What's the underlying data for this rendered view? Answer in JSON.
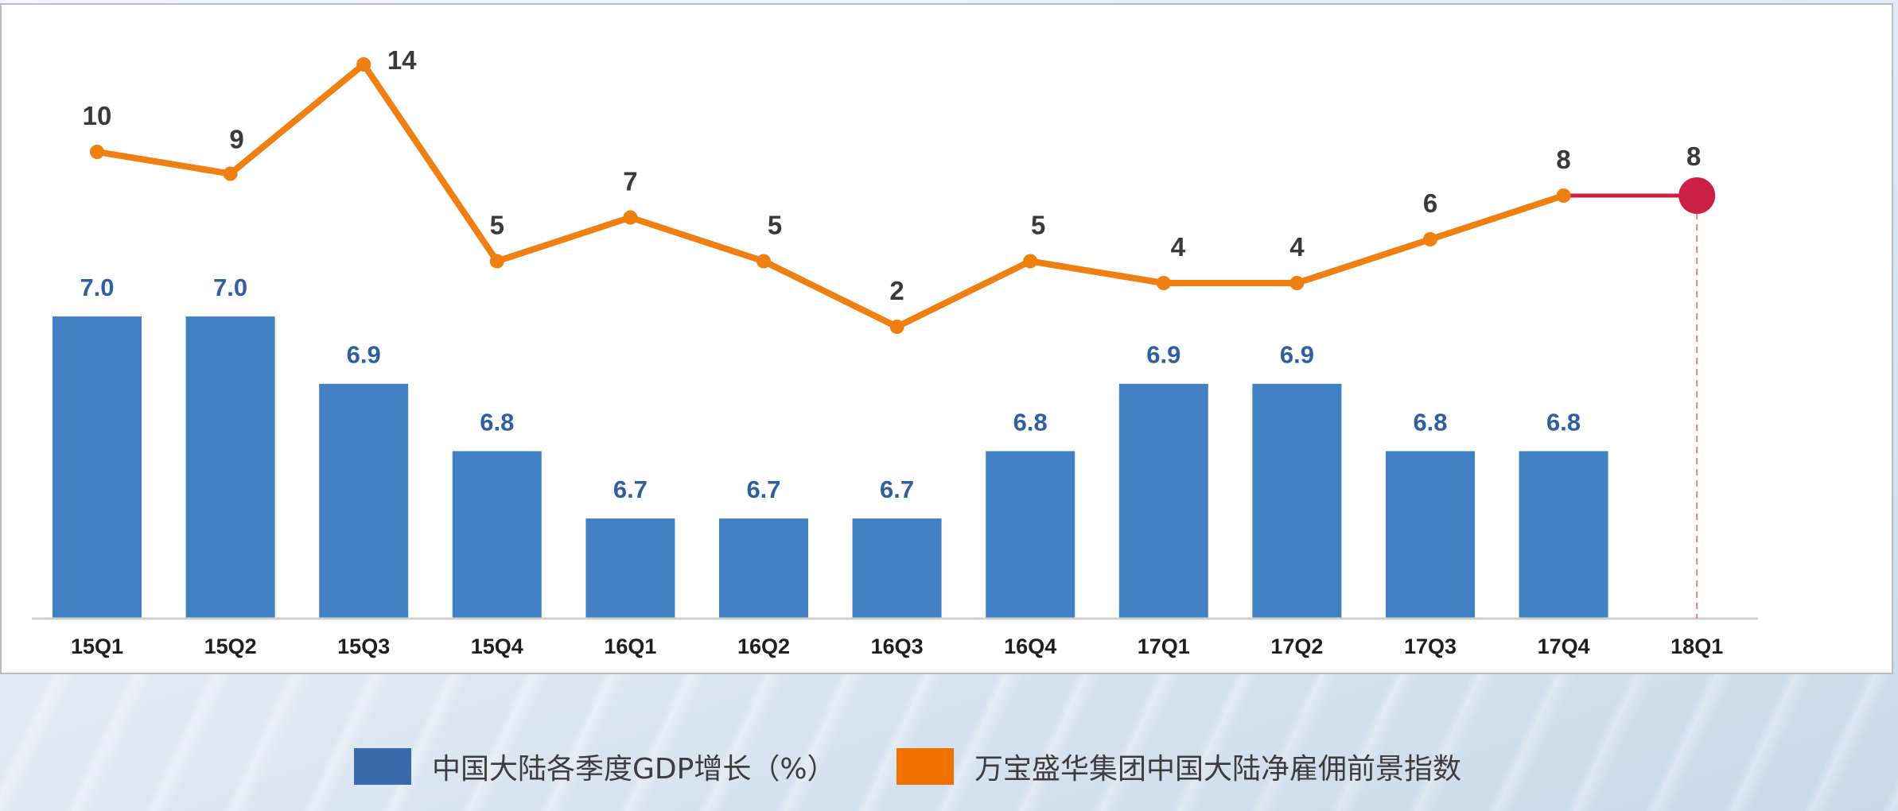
{
  "chart_data": {
    "type": "bar+line",
    "categories": [
      "15Q1",
      "15Q2",
      "15Q3",
      "15Q4",
      "16Q1",
      "16Q2",
      "16Q3",
      "16Q4",
      "17Q1",
      "17Q2",
      "17Q3",
      "17Q4",
      "18Q1"
    ],
    "series": [
      {
        "name": "中国大陆各季度GDP增长（%）",
        "type": "bar",
        "color": "#4180c2",
        "label_color": "#2f5f9e",
        "values": [
          7.0,
          7.0,
          6.9,
          6.8,
          6.7,
          6.7,
          6.7,
          6.8,
          6.9,
          6.9,
          6.8,
          6.8,
          null
        ],
        "labels": [
          "7.0",
          "7.0",
          "6.9",
          "6.8",
          "6.7",
          "6.7",
          "6.7",
          "6.8",
          "6.9",
          "6.9",
          "6.8",
          "6.8",
          ""
        ]
      },
      {
        "name": "万宝盛华集团中国大陆净雇佣前景指数",
        "type": "line",
        "color": "#f07f12",
        "highlight_color": "#cc1f44",
        "values": [
          10,
          9,
          14,
          5,
          7,
          5,
          2,
          5,
          4,
          4,
          6,
          8,
          8
        ],
        "labels": [
          "10",
          "9",
          "14",
          "5",
          "7",
          "5",
          "2",
          "5",
          "4",
          "4",
          "6",
          "8",
          "8"
        ]
      }
    ],
    "highlight_category": "18Q1",
    "grid": false,
    "legend_position": "bottom"
  },
  "legend": {
    "items": [
      {
        "label": "中国大陆各季度GDP增长（%）",
        "color": "#3a6aad"
      },
      {
        "label": "万宝盛华集团中国大陆净雇佣前景指数",
        "color": "#f07000"
      }
    ]
  }
}
